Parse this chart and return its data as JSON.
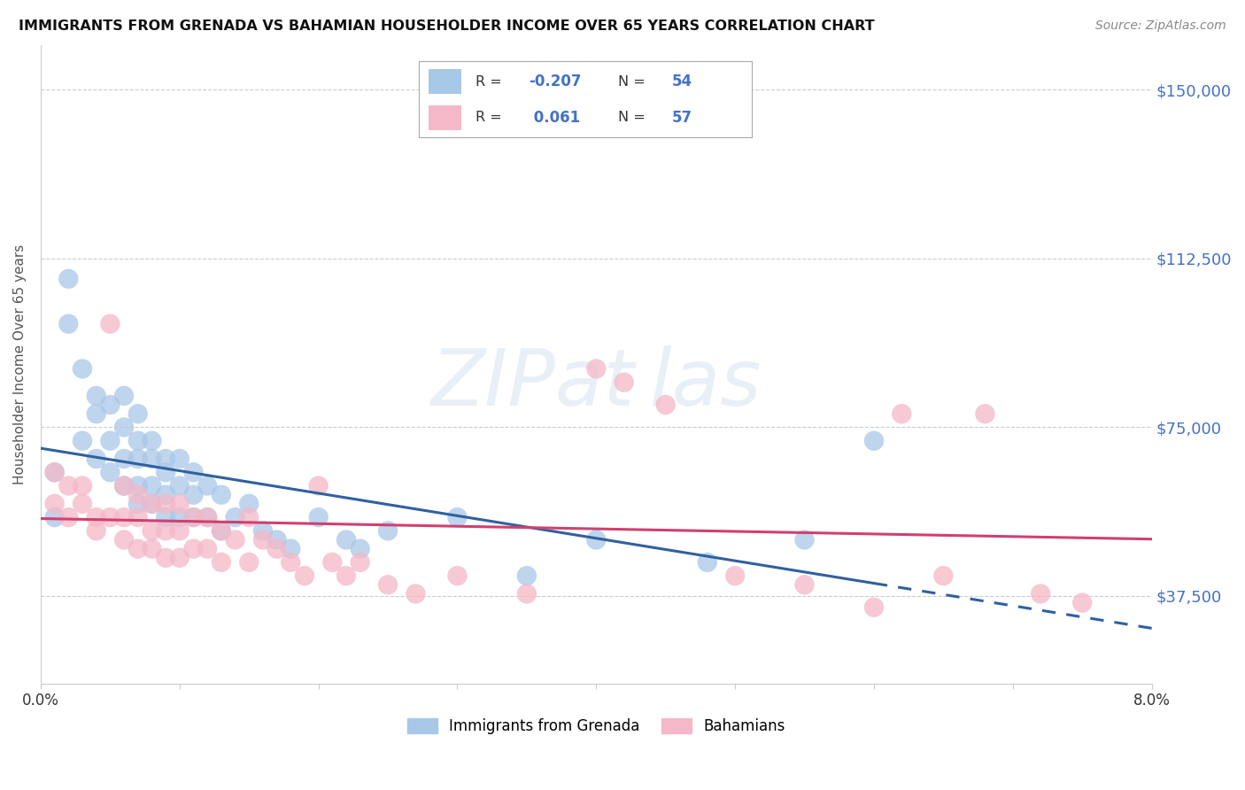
{
  "title": "IMMIGRANTS FROM GRENADA VS BAHAMIAN HOUSEHOLDER INCOME OVER 65 YEARS CORRELATION CHART",
  "source": "Source: ZipAtlas.com",
  "ylabel": "Householder Income Over 65 years",
  "xlim": [
    0.0,
    0.08
  ],
  "ylim": [
    18000,
    160000
  ],
  "yticks": [
    37500,
    75000,
    112500,
    150000
  ],
  "ytick_labels": [
    "$37,500",
    "$75,000",
    "$112,500",
    "$150,000"
  ],
  "legend1_R": "-0.207",
  "legend1_N": "54",
  "legend2_R": " 0.061",
  "legend2_N": "57",
  "color_blue": "#a8c8e8",
  "color_pink": "#f4b8c8",
  "line_blue": "#3060a0",
  "line_pink": "#d04070",
  "watermark": "ZIPat las",
  "grenada_x": [
    0.001,
    0.001,
    0.002,
    0.002,
    0.003,
    0.003,
    0.004,
    0.004,
    0.004,
    0.005,
    0.005,
    0.005,
    0.006,
    0.006,
    0.006,
    0.006,
    0.007,
    0.007,
    0.007,
    0.007,
    0.007,
    0.008,
    0.008,
    0.008,
    0.008,
    0.009,
    0.009,
    0.009,
    0.009,
    0.01,
    0.01,
    0.01,
    0.011,
    0.011,
    0.011,
    0.012,
    0.012,
    0.013,
    0.013,
    0.014,
    0.015,
    0.016,
    0.017,
    0.018,
    0.02,
    0.022,
    0.023,
    0.025,
    0.03,
    0.035,
    0.04,
    0.048,
    0.055,
    0.06
  ],
  "grenada_y": [
    65000,
    55000,
    108000,
    98000,
    88000,
    72000,
    82000,
    78000,
    68000,
    80000,
    72000,
    65000,
    82000,
    75000,
    68000,
    62000,
    78000,
    72000,
    68000,
    62000,
    58000,
    72000,
    68000,
    62000,
    58000,
    68000,
    65000,
    60000,
    55000,
    68000,
    62000,
    55000,
    65000,
    60000,
    55000,
    62000,
    55000,
    60000,
    52000,
    55000,
    58000,
    52000,
    50000,
    48000,
    55000,
    50000,
    48000,
    52000,
    55000,
    42000,
    50000,
    45000,
    50000,
    72000
  ],
  "bahamian_x": [
    0.001,
    0.001,
    0.002,
    0.002,
    0.003,
    0.003,
    0.004,
    0.004,
    0.005,
    0.005,
    0.006,
    0.006,
    0.006,
    0.007,
    0.007,
    0.007,
    0.008,
    0.008,
    0.008,
    0.009,
    0.009,
    0.009,
    0.01,
    0.01,
    0.01,
    0.011,
    0.011,
    0.012,
    0.012,
    0.013,
    0.013,
    0.014,
    0.015,
    0.015,
    0.016,
    0.017,
    0.018,
    0.019,
    0.02,
    0.021,
    0.022,
    0.023,
    0.025,
    0.027,
    0.03,
    0.035,
    0.04,
    0.042,
    0.045,
    0.05,
    0.055,
    0.06,
    0.062,
    0.065,
    0.068,
    0.072,
    0.075
  ],
  "bahamian_y": [
    65000,
    58000,
    62000,
    55000,
    62000,
    58000,
    55000,
    52000,
    98000,
    55000,
    62000,
    55000,
    50000,
    60000,
    55000,
    48000,
    58000,
    52000,
    48000,
    58000,
    52000,
    46000,
    58000,
    52000,
    46000,
    55000,
    48000,
    55000,
    48000,
    52000,
    45000,
    50000,
    55000,
    45000,
    50000,
    48000,
    45000,
    42000,
    62000,
    45000,
    42000,
    45000,
    40000,
    38000,
    42000,
    38000,
    88000,
    85000,
    80000,
    42000,
    40000,
    35000,
    78000,
    42000,
    78000,
    38000,
    36000
  ]
}
